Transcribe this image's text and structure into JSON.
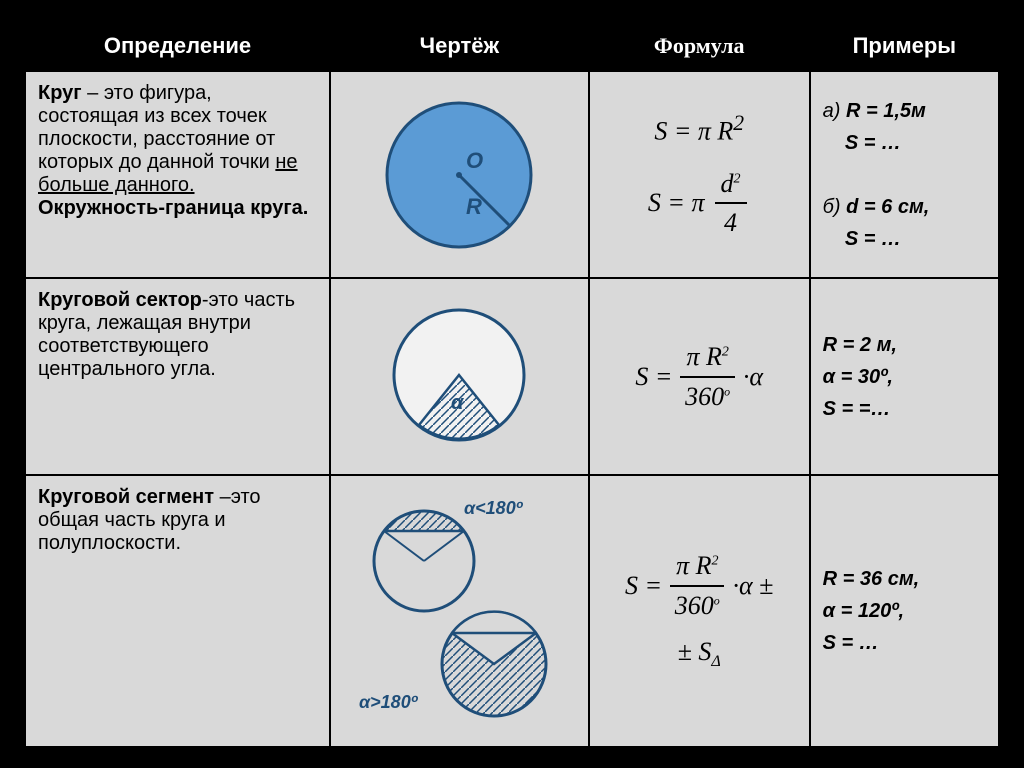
{
  "header": {
    "def": "Определение",
    "draw": "Чертёж",
    "form": "Формула",
    "ex": "Примеры"
  },
  "rows": {
    "circle": {
      "def_html": "<b>Круг</b> – это фигура, состоящая из всех точек плоскости, расстояние от которых до данной точки <span class='u'>не больше данного.</span><br><b>Окружность-граница круга.</b>",
      "formula1": "S = πR²",
      "formula2_num": "d²",
      "formula2_den": "4",
      "ex_html": "а) <b>R = 1,5м<br>&nbsp;&nbsp;&nbsp;&nbsp;S = …</b><br><br>б) <b>d = 6 см,<br>&nbsp;&nbsp;&nbsp;&nbsp;S = …</b>",
      "diagram": {
        "type": "filled-circle",
        "fill": "#5b9bd5",
        "stroke": "#1f4e79",
        "stroke_width": 3,
        "label_O": "O",
        "label_R": "R"
      }
    },
    "sector": {
      "def_html": "<b>Круговой сектор</b>-это часть круга, лежащая внутри соответствующего центрального угла.",
      "formula_num": "πR²",
      "formula_den": "360º",
      "formula_tail": "·α",
      "ex_html": "<b>R = 2 м,<br>α = 30º,<br>S = =…</b>",
      "diagram": {
        "type": "sector",
        "stroke": "#1f4e79",
        "stroke_width": 3,
        "fill": "#f2f2f2",
        "hatch": "#1f4e79",
        "label_alpha": "α"
      }
    },
    "segment": {
      "def_html": "<b>Круговой сегмент</b> –это общая часть круга и полуплоскости.",
      "formula_num": "πR²",
      "formula_den": "360º",
      "formula_tail": "·α ±",
      "formula_extra": "± S",
      "formula_sub": "Δ",
      "ex_html": "<b>R = 36 см,<br>α = 120º,<br>S = …</b>",
      "diagram": {
        "stroke": "#1f4e79",
        "stroke_width": 3,
        "hatch": "#1f4e79",
        "label_small": "α<180º",
        "label_big": "α>180º"
      }
    }
  },
  "colors": {
    "bg": "#000000",
    "cell_bg": "#d9d9d9",
    "circle_fill": "#5b9bd5",
    "circle_stroke": "#1f4e79"
  }
}
